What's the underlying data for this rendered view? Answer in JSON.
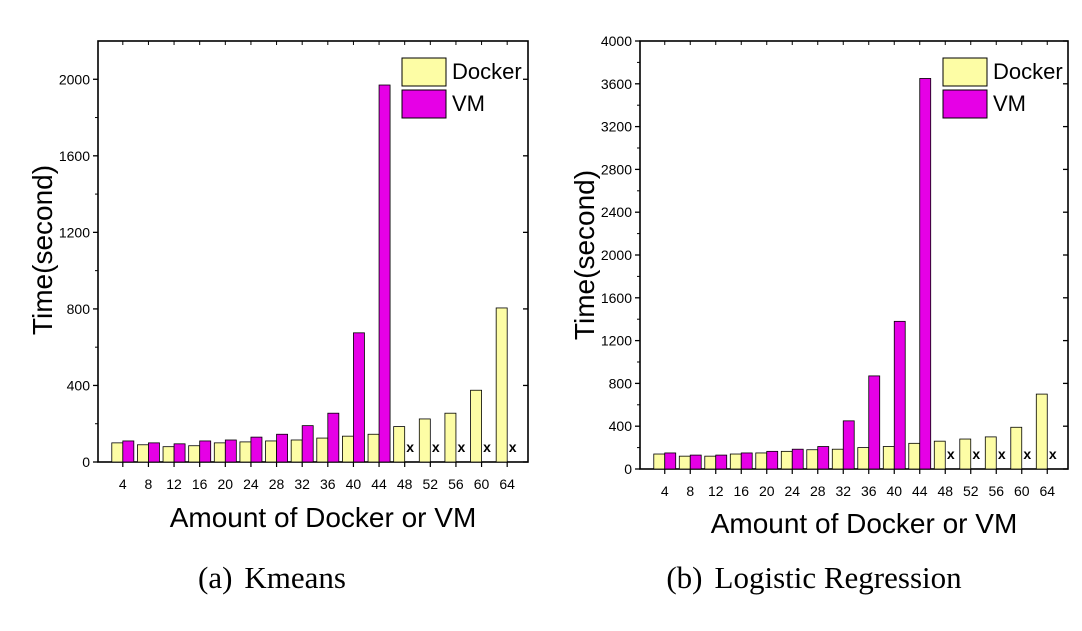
{
  "colors": {
    "docker": "#fdfda5",
    "vm": "#e600e6",
    "axis": "#000000",
    "missing_marker": "#000000"
  },
  "chart_data": [
    {
      "type": "bar",
      "caption_tag": "(a)",
      "caption_title": "Kmeans",
      "xlabel": "Amount of Docker or VM",
      "ylabel": "Time(second)",
      "ylim": [
        0,
        2200
      ],
      "yticks": [
        0,
        400,
        800,
        1200,
        1600,
        2000
      ],
      "categories": [
        "4",
        "8",
        "12",
        "16",
        "20",
        "24",
        "28",
        "32",
        "36",
        "40",
        "44",
        "48",
        "52",
        "56",
        "60",
        "64"
      ],
      "missing_marker": "x",
      "legend_position": "top-right",
      "grid": false,
      "series": [
        {
          "name": "Docker",
          "values": [
            100,
            90,
            80,
            85,
            100,
            105,
            110,
            115,
            125,
            135,
            145,
            185,
            225,
            255,
            375,
            805
          ]
        },
        {
          "name": "VM",
          "values": [
            110,
            100,
            95,
            110,
            115,
            130,
            145,
            190,
            255,
            675,
            1970,
            null,
            null,
            null,
            null,
            null
          ]
        }
      ]
    },
    {
      "type": "bar",
      "caption_tag": "(b)",
      "caption_title": "Logistic Regression",
      "xlabel": "Amount of Docker or VM",
      "ylabel": "Time(second)",
      "ylim": [
        0,
        4000
      ],
      "yticks": [
        0,
        400,
        800,
        1200,
        1600,
        2000,
        2400,
        2800,
        3200,
        3600,
        4000
      ],
      "categories": [
        "4",
        "8",
        "12",
        "16",
        "20",
        "24",
        "28",
        "32",
        "36",
        "40",
        "44",
        "48",
        "52",
        "56",
        "60",
        "64"
      ],
      "missing_marker": "x",
      "legend_position": "top-right",
      "grid": false,
      "series": [
        {
          "name": "Docker",
          "values": [
            140,
            120,
            120,
            140,
            150,
            165,
            180,
            185,
            200,
            210,
            240,
            260,
            280,
            300,
            390,
            700
          ]
        },
        {
          "name": "VM",
          "values": [
            150,
            130,
            130,
            150,
            165,
            185,
            210,
            450,
            870,
            1380,
            3650,
            null,
            null,
            null,
            null,
            null
          ]
        }
      ]
    }
  ]
}
